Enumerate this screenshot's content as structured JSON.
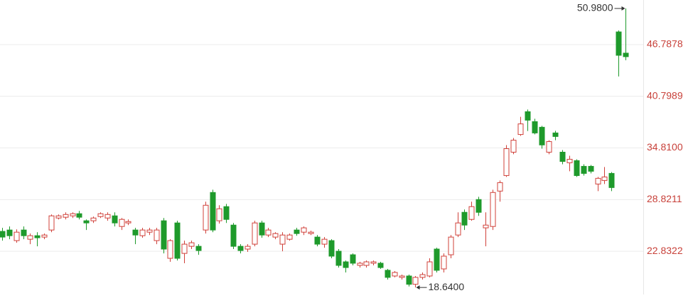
{
  "chart_data": {
    "type": "candlestick",
    "up_color": "#d0413a",
    "down_color": "#1e9a2b",
    "ylim": [
      17.83,
      51.96
    ],
    "yticks": [
      22.8322,
      28.8211,
      {
        "value": 34.81,
        "label": "34.8100"
      },
      40.7989,
      46.7878
    ],
    "grid": true,
    "max_label": "50.9800",
    "min_label": "18.6400",
    "open": [
      25.14,
      25.3,
      24.07,
      25.3,
      24.23,
      24.64,
      24.48,
      25.3,
      26.69,
      26.78,
      26.94,
      27.19,
      26.37,
      26.37,
      26.86,
      26.69,
      26.94,
      25.71,
      26.12,
      25.3,
      24.64,
      25.05,
      24.07,
      26.37,
      22.02,
      26.12,
      22.59,
      23.41,
      23.41,
      25.3,
      29.65,
      26.37,
      28.01,
      25.87,
      23.41,
      23.09,
      23.66,
      26.12,
      24.72,
      24.48,
      23.66,
      24.23,
      25.3,
      25.05,
      24.89,
      24.48,
      23.66,
      24.07,
      22.84,
      21.61,
      22.43,
      21.2,
      21.2,
      21.45,
      21.45,
      20.63,
      19.97,
      19.81,
      19.97,
      19.01,
      19.81,
      19.97,
      23.09,
      20.79,
      22.43,
      24.72,
      27.35,
      26.53,
      28.83,
      25.55,
      25.71,
      29.81,
      31.61,
      34.32,
      36.37,
      39.01,
      37.86,
      37.21,
      34.32,
      36.55,
      34.32,
      33.09,
      33.34,
      32.68,
      32.68,
      30.63,
      31.04,
      31.86,
      48.26,
      45.8
    ],
    "high": [
      25.55,
      25.71,
      25.38,
      25.71,
      24.89,
      25.05,
      24.89,
      27.1,
      27.1,
      27.35,
      27.35,
      27.51,
      26.53,
      26.86,
      27.35,
      27.35,
      27.35,
      26.69,
      26.53,
      25.55,
      25.55,
      25.55,
      25.55,
      26.69,
      24.23,
      26.37,
      24.07,
      24.07,
      23.66,
      28.58,
      29.97,
      28.17,
      28.33,
      26.12,
      23.66,
      23.66,
      26.37,
      26.37,
      25.55,
      25.05,
      25.05,
      24.89,
      25.55,
      25.71,
      25.22,
      24.72,
      24.48,
      24.23,
      23.09,
      21.77,
      22.59,
      21.61,
      21.77,
      21.77,
      21.61,
      20.79,
      20.54,
      20.13,
      20.13,
      19.97,
      20.38,
      22.02,
      23.25,
      22.59,
      24.72,
      27.35,
      27.68,
      28.58,
      29.15,
      27.35,
      29.97,
      31.04,
      35.14,
      35.96,
      38.42,
      39.26,
      38.19,
      37.37,
      35.71,
      36.8,
      34.57,
      33.91,
      33.5,
      32.92,
      32.84,
      31.45,
      32.6,
      32.02,
      48.43,
      50.98
    ],
    "low": [
      24.07,
      24.23,
      23.82,
      24.23,
      23.66,
      23.41,
      24.23,
      25.05,
      26.53,
      26.53,
      26.69,
      26.53,
      25.3,
      26.12,
      26.69,
      26.37,
      25.71,
      25.3,
      25.87,
      23.66,
      24.4,
      24.72,
      23.66,
      22.59,
      21.61,
      21.77,
      21.45,
      23.09,
      22.43,
      24.89,
      25.05,
      26.04,
      26.12,
      23.09,
      22.59,
      22.76,
      23.41,
      24.4,
      24.48,
      24.23,
      22.84,
      24.07,
      24.64,
      24.72,
      24.72,
      23.41,
      23.25,
      22.02,
      20.95,
      20.38,
      21.2,
      20.95,
      20.95,
      21.2,
      20.79,
      19.56,
      19.81,
      19.56,
      18.76,
      18.64,
      19.56,
      19.81,
      20.38,
      20.38,
      22.02,
      24.48,
      25.3,
      26.37,
      26.94,
      23.41,
      25.3,
      28.58,
      31.45,
      34.08,
      36.21,
      36.78,
      36.39,
      34.73,
      34.08,
      35.71,
      32.92,
      32.11,
      31.45,
      31.61,
      31.86,
      29.81,
      30.63,
      29.81,
      43.1,
      44.98
    ],
    "close": [
      24.48,
      24.64,
      25.05,
      24.64,
      24.64,
      24.4,
      24.72,
      26.94,
      26.94,
      27.1,
      27.19,
      26.78,
      26.12,
      26.69,
      27.19,
      27.1,
      26.12,
      26.53,
      26.28,
      24.72,
      25.3,
      25.3,
      25.3,
      23.09,
      24.07,
      22.02,
      23.66,
      23.82,
      22.92,
      28.17,
      25.3,
      27.76,
      26.53,
      23.41,
      22.92,
      23.41,
      26.12,
      24.72,
      25.3,
      24.89,
      24.72,
      24.72,
      24.89,
      25.55,
      25.05,
      23.66,
      24.23,
      22.27,
      21.2,
      20.95,
      21.45,
      21.45,
      21.61,
      21.61,
      20.95,
      19.81,
      20.38,
      19.97,
      19.01,
      19.81,
      20.13,
      21.61,
      20.63,
      22.27,
      24.48,
      26.12,
      25.87,
      28.01,
      27.35,
      25.87,
      29.65,
      30.79,
      34.73,
      35.71,
      37.6,
      38.03,
      36.55,
      35.16,
      35.55,
      36.14,
      33.25,
      33.5,
      31.61,
      31.86,
      32.11,
      31.29,
      31.45,
      30.22,
      45.55,
      45.39
    ]
  }
}
